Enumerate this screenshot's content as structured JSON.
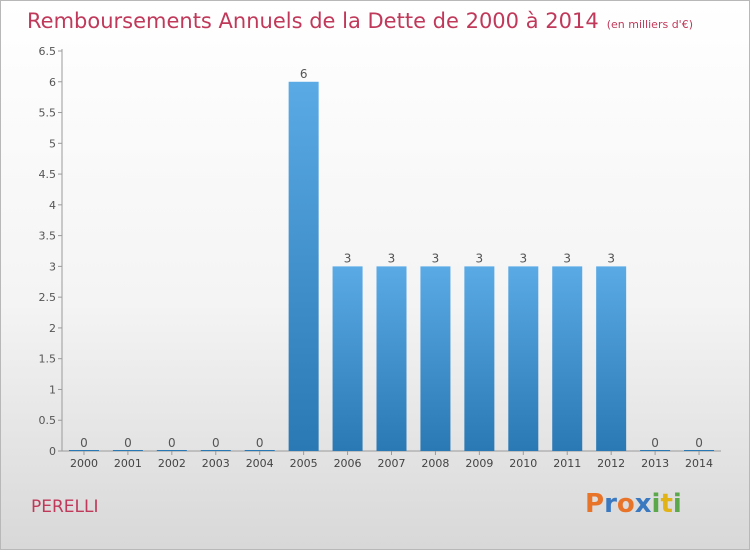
{
  "header": {
    "title": "Remboursements Annuels de la Dette de 2000 à 2014",
    "unit_note": "(en milliers d'€)"
  },
  "footer": {
    "city": "PERELLI",
    "logo_text": "Proxiti"
  },
  "colors": {
    "title": "#c0395a",
    "bar_light": "#5aaae6",
    "bar_dark": "#2a78b4"
  },
  "chart_data": {
    "type": "bar",
    "title": "Remboursements Annuels de la Dette de 2000 à 2014",
    "xlabel": "",
    "ylabel": "",
    "categories": [
      "2000",
      "2001",
      "2002",
      "2003",
      "2004",
      "2005",
      "2006",
      "2007",
      "2008",
      "2009",
      "2010",
      "2011",
      "2012",
      "2013",
      "2014"
    ],
    "values": [
      0,
      0,
      0,
      0,
      0,
      6,
      3,
      3,
      3,
      3,
      3,
      3,
      3,
      0,
      0
    ],
    "ylim": [
      0,
      6.5
    ],
    "yticks": [
      "0",
      "0.5",
      "1",
      "1.5",
      "2",
      "2.5",
      "3",
      "3.5",
      "4",
      "4.5",
      "5",
      "5.5",
      "6",
      "6.5"
    ],
    "grid": false,
    "data_labels": true
  }
}
